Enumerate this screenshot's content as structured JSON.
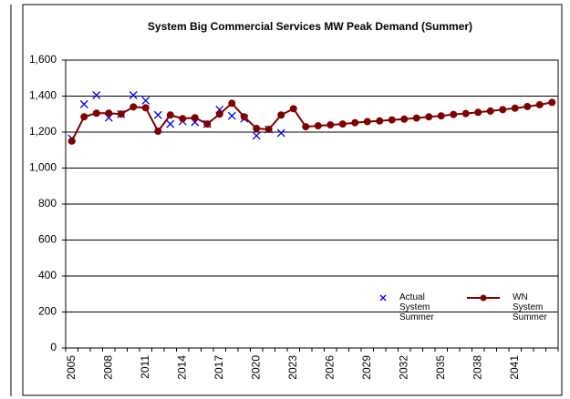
{
  "chart_data": {
    "type": "line",
    "title": "System  Big Commercial  Services MW Peak Demand (Summer)",
    "categories": [
      "2005",
      null,
      null,
      "2008",
      null,
      null,
      "2011",
      null,
      null,
      "2014",
      null,
      null,
      "2017",
      null,
      null,
      "2020",
      null,
      null,
      "2023",
      null,
      null,
      "2026",
      null,
      null,
      "2029",
      null,
      null,
      "2032",
      null,
      null,
      "2035",
      null,
      null,
      "2038",
      null,
      null,
      "2041",
      null,
      null,
      null
    ],
    "series": [
      {
        "name": "Actual System Summer",
        "color": "#0000ff",
        "marker": "x",
        "values": [
          1165,
          1355,
          1405,
          1280,
          1300,
          1405,
          1375,
          1295,
          1245,
          1260,
          1255,
          1245,
          1325,
          1290,
          1275,
          1180,
          1215,
          1195,
          null,
          null,
          null,
          null,
          null,
          null,
          null,
          null,
          null,
          null,
          null,
          null,
          null,
          null,
          null,
          null,
          null,
          null,
          null,
          null,
          null,
          null
        ]
      },
      {
        "name": "WN System Summer",
        "color": "#800000",
        "marker": "circle",
        "values": [
          1150,
          1285,
          1305,
          1305,
          1300,
          1340,
          1335,
          1205,
          1295,
          1275,
          1280,
          1245,
          1300,
          1360,
          1285,
          1220,
          1215,
          1295,
          1330,
          1230,
          1235,
          1240,
          1245,
          1252,
          1258,
          1262,
          1268,
          1272,
          1278,
          1285,
          1290,
          1298,
          1303,
          1310,
          1317,
          1325,
          1333,
          1342,
          1352,
          1365
        ]
      }
    ],
    "ylim": [
      0,
      1600
    ],
    "yticks": [
      0,
      200,
      400,
      600,
      800,
      {
        "value": 1000,
        "label": "1,000"
      },
      {
        "value": 1200,
        "label": "1,200"
      },
      {
        "value": 1400,
        "label": "1,400"
      },
      {
        "value": 1600,
        "label": "1,600"
      }
    ],
    "grid": true
  }
}
